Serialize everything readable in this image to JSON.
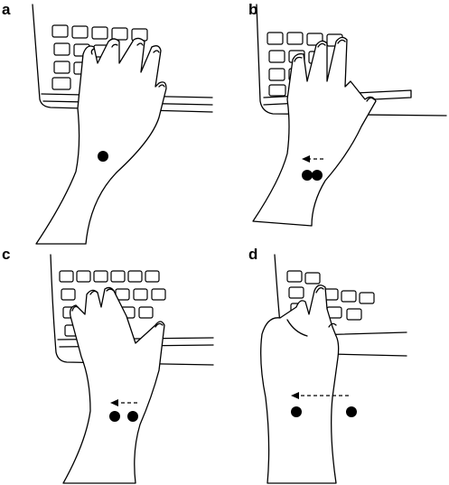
{
  "figure": {
    "panels": [
      {
        "label": "a",
        "markers": 1,
        "arrow": false
      },
      {
        "label": "b",
        "markers": 2,
        "arrow": true
      },
      {
        "label": "c",
        "markers": 2,
        "arrow": true
      },
      {
        "label": "d",
        "markers": 2,
        "arrow": true
      }
    ],
    "colors": {
      "ink": "#000000",
      "background": "#ffffff"
    }
  }
}
